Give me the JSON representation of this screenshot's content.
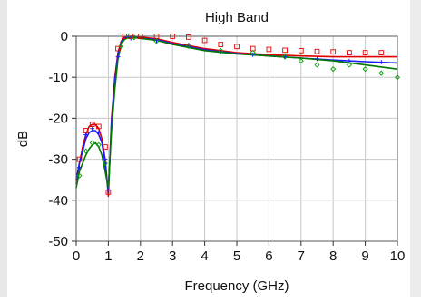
{
  "chart_data": {
    "type": "line",
    "title": "High Band",
    "xlabel": "Frequency (GHz)",
    "ylabel": "dB",
    "xlim": [
      0,
      10
    ],
    "ylim": [
      -50,
      0
    ],
    "x_ticks": [
      0,
      1,
      2,
      3,
      4,
      5,
      6,
      7,
      8,
      9,
      10
    ],
    "y_ticks": [
      0,
      -10,
      -20,
      -30,
      -40,
      -50
    ],
    "x_tick_labels": [
      "0",
      "1",
      "2",
      "3",
      "4",
      "5",
      "6",
      "7",
      "8",
      "9",
      "10"
    ],
    "y_tick_labels": [
      "0",
      "-10",
      "-20",
      "-30",
      "-40",
      "-50"
    ],
    "grid": true,
    "legend": "none",
    "series": [
      {
        "color": "#e00000",
        "style": "line",
        "x": [
          0,
          0.1,
          0.2,
          0.3,
          0.4,
          0.5,
          0.6,
          0.7,
          0.8,
          0.9,
          1.0,
          1.1,
          1.2,
          1.3,
          1.4,
          1.5,
          1.6,
          1.8,
          2.0,
          2.5,
          3.0,
          4.0,
          5.0,
          6.0,
          7.0,
          8.0,
          9.0,
          10.0
        ],
        "y": [
          -36,
          -31,
          -27,
          -24,
          -22,
          -21.5,
          -21.5,
          -22.5,
          -25,
          -30,
          -39,
          -20,
          -10,
          -4,
          -1.2,
          -0.2,
          0,
          0,
          -0.2,
          -0.6,
          -1.5,
          -3,
          -4,
          -4.5,
          -4.8,
          -5,
          -5,
          -5
        ]
      },
      {
        "color": "#1a1aff",
        "style": "line",
        "x": [
          0,
          0.1,
          0.2,
          0.3,
          0.4,
          0.5,
          0.6,
          0.7,
          0.8,
          0.9,
          1.0,
          1.1,
          1.2,
          1.3,
          1.4,
          1.5,
          1.6,
          1.8,
          2.0,
          2.5,
          3.0,
          4.0,
          5.0,
          6.0,
          7.0,
          8.0,
          9.0,
          10.0
        ],
        "y": [
          -35,
          -31,
          -28,
          -25,
          -23.5,
          -23,
          -23,
          -24,
          -26,
          -31,
          -38,
          -21,
          -11,
          -4.5,
          -1.5,
          -0.5,
          -0.2,
          -0.2,
          -0.5,
          -0.8,
          -1.8,
          -3.3,
          -4.2,
          -4.8,
          -5.3,
          -5.8,
          -6.2,
          -6.5
        ]
      },
      {
        "color": "#007a00",
        "style": "line",
        "x": [
          0,
          0.1,
          0.2,
          0.3,
          0.4,
          0.5,
          0.6,
          0.7,
          0.8,
          0.9,
          1.0,
          1.1,
          1.2,
          1.3,
          1.4,
          1.5,
          1.6,
          1.8,
          2.0,
          2.5,
          3.0,
          4.0,
          5.0,
          6.0,
          7.0,
          8.0,
          9.0,
          10.0
        ],
        "y": [
          -37,
          -33,
          -31,
          -29,
          -27.5,
          -26.5,
          -26,
          -27,
          -29,
          -33,
          -37,
          -23,
          -13,
          -5.5,
          -2,
          -0.8,
          -0.4,
          -0.3,
          -0.5,
          -1,
          -2,
          -3.5,
          -4.3,
          -4.8,
          -5.3,
          -6,
          -7,
          -8
        ]
      },
      {
        "color": "#1a1aff",
        "style": "markers-plus",
        "x": [
          0.1,
          0.3,
          0.5,
          0.7,
          0.9,
          1.3,
          1.7,
          2.5,
          3.5,
          4.5,
          5.5,
          6.5,
          7.5,
          8.5,
          9.5
        ],
        "y": [
          -32,
          -24,
          -22.5,
          -23.5,
          -30,
          -5,
          -0.5,
          -1,
          -2.5,
          -3.8,
          -4.5,
          -5,
          -5.5,
          -6,
          -6.3
        ]
      },
      {
        "color": "#e00000",
        "style": "markers-square",
        "x": [
          0.1,
          0.3,
          0.5,
          0.7,
          0.9,
          1.0,
          1.3,
          1.5,
          1.7,
          2.0,
          2.5,
          3.0,
          3.5,
          4.0,
          4.5,
          5.0,
          5.5,
          6.0,
          6.5,
          7.0,
          7.5,
          8.0,
          8.5,
          9.0,
          9.5
        ],
        "y": [
          -30,
          -23,
          -21.5,
          -22,
          -27,
          -38,
          -3,
          0,
          0,
          0,
          0,
          0,
          -0.2,
          -1,
          -2,
          -2.5,
          -3,
          -3.2,
          -3.4,
          -3.5,
          -3.7,
          -3.8,
          -4,
          -4,
          -4
        ]
      },
      {
        "color": "#00a000",
        "style": "markers-diamond",
        "x": [
          0.1,
          0.3,
          0.5,
          0.7,
          0.9,
          1.4,
          1.8,
          2.5,
          3.5,
          4.5,
          5.5,
          6.5,
          7.0,
          7.5,
          8.0,
          8.5,
          9.0,
          9.5,
          10.0
        ],
        "y": [
          -34,
          -28,
          -26,
          -26.5,
          -31,
          -2.5,
          -0.3,
          -1.2,
          -2.2,
          -3.5,
          -4,
          -5,
          -6,
          -7,
          -8,
          -7,
          -8,
          -9,
          -10
        ]
      }
    ]
  }
}
